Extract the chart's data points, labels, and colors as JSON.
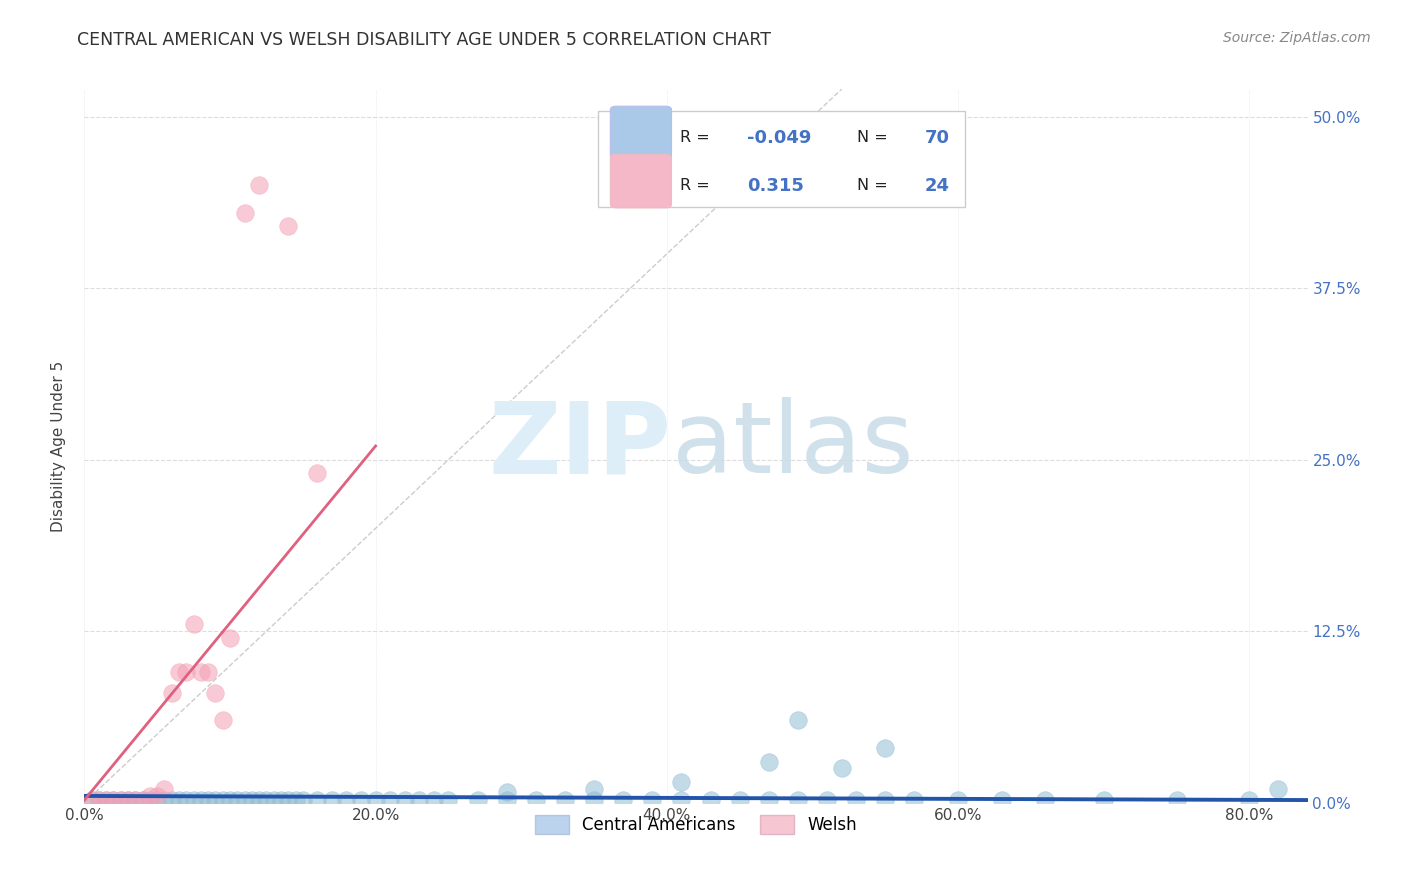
{
  "title": "CENTRAL AMERICAN VS WELSH DISABILITY AGE UNDER 5 CORRELATION CHART",
  "source": "Source: ZipAtlas.com",
  "ylabel_label": "Disability Age Under 5",
  "xlim": [
    0.0,
    0.84
  ],
  "ylim": [
    0.0,
    0.52
  ],
  "ytick_vals": [
    0.0,
    0.125,
    0.25,
    0.375,
    0.5
  ],
  "ytick_labels": [
    "0.0%",
    "12.5%",
    "25.0%",
    "37.5%",
    "50.0%"
  ],
  "xtick_vals": [
    0.0,
    0.2,
    0.4,
    0.6,
    0.8
  ],
  "xtick_labels": [
    "0.0%",
    "20.0%",
    "40.0%",
    "60.0%",
    "80.0%"
  ],
  "blue_scatter_x": [
    0.005,
    0.01,
    0.015,
    0.02,
    0.025,
    0.03,
    0.035,
    0.04,
    0.045,
    0.05,
    0.055,
    0.06,
    0.065,
    0.07,
    0.075,
    0.08,
    0.085,
    0.09,
    0.095,
    0.1,
    0.105,
    0.11,
    0.115,
    0.12,
    0.125,
    0.13,
    0.135,
    0.14,
    0.145,
    0.15,
    0.16,
    0.17,
    0.18,
    0.19,
    0.2,
    0.21,
    0.22,
    0.23,
    0.24,
    0.25,
    0.27,
    0.29,
    0.31,
    0.33,
    0.35,
    0.37,
    0.39,
    0.41,
    0.43,
    0.45,
    0.47,
    0.49,
    0.51,
    0.53,
    0.55,
    0.57,
    0.6,
    0.63,
    0.66,
    0.7,
    0.75,
    0.8,
    0.29,
    0.35,
    0.41,
    0.47,
    0.49,
    0.52,
    0.55,
    0.82
  ],
  "blue_scatter_y": [
    0.002,
    0.002,
    0.002,
    0.002,
    0.002,
    0.002,
    0.002,
    0.002,
    0.002,
    0.002,
    0.002,
    0.002,
    0.002,
    0.002,
    0.002,
    0.002,
    0.002,
    0.002,
    0.002,
    0.002,
    0.002,
    0.002,
    0.002,
    0.002,
    0.002,
    0.002,
    0.002,
    0.002,
    0.002,
    0.002,
    0.002,
    0.002,
    0.002,
    0.002,
    0.002,
    0.002,
    0.002,
    0.002,
    0.002,
    0.002,
    0.002,
    0.002,
    0.002,
    0.002,
    0.002,
    0.002,
    0.002,
    0.002,
    0.002,
    0.002,
    0.002,
    0.002,
    0.002,
    0.002,
    0.002,
    0.002,
    0.002,
    0.002,
    0.002,
    0.002,
    0.002,
    0.002,
    0.008,
    0.01,
    0.015,
    0.03,
    0.06,
    0.025,
    0.04,
    0.01
  ],
  "pink_scatter_x": [
    0.005,
    0.01,
    0.015,
    0.02,
    0.025,
    0.03,
    0.035,
    0.04,
    0.045,
    0.05,
    0.055,
    0.06,
    0.065,
    0.07,
    0.075,
    0.08,
    0.085,
    0.09,
    0.095,
    0.1,
    0.11,
    0.12,
    0.14,
    0.16
  ],
  "pink_scatter_y": [
    0.002,
    0.002,
    0.002,
    0.002,
    0.002,
    0.002,
    0.002,
    0.002,
    0.005,
    0.005,
    0.01,
    0.08,
    0.095,
    0.095,
    0.13,
    0.095,
    0.095,
    0.08,
    0.06,
    0.12,
    0.43,
    0.45,
    0.42,
    0.24
  ],
  "blue_line_x": [
    0.0,
    0.84
  ],
  "blue_line_y": [
    0.005,
    0.002
  ],
  "pink_line_x": [
    0.0,
    0.2
  ],
  "pink_line_y": [
    0.002,
    0.26
  ],
  "diagonal_line_x": [
    0.0,
    0.52
  ],
  "diagonal_line_y": [
    0.0,
    0.52
  ],
  "background_color": "#ffffff",
  "grid_color": "#dddddd",
  "title_color": "#333333",
  "source_color": "#888888",
  "right_axis_color": "#4472c4",
  "blue_scatter_color": "#92bcd4",
  "pink_scatter_color": "#f4a0b4",
  "blue_line_color": "#2255aa",
  "pink_line_color": "#e06080",
  "diagonal_color": "#cccccc",
  "legend_blue_color": "#aac8e8",
  "legend_pink_color": "#f4b8c8",
  "R_blue": "-0.049",
  "N_blue": "70",
  "R_pink": "0.315",
  "N_pink": "24",
  "legend_label_blue": "Central Americans",
  "legend_label_pink": "Welsh"
}
